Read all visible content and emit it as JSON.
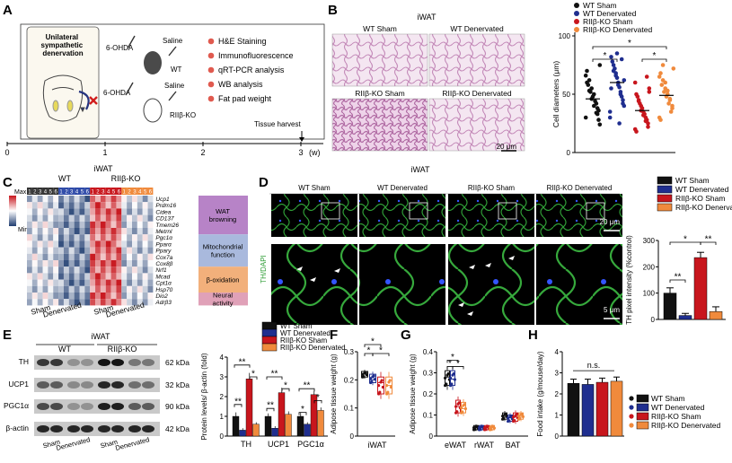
{
  "panels": {
    "A": {
      "label": "A",
      "box_title": "Unilateral sympathetic denervation",
      "drug": "6-OHDA",
      "control": "Saline",
      "groups": [
        "WT",
        "RIIβ-KO"
      ],
      "assays": [
        "H&E Staining",
        "Immunofluorescence",
        "qRT-PCR analysis",
        "WB analysis",
        "Fat pad weight"
      ],
      "harvest": "Tissue harvest",
      "timeline_ticks": [
        "0",
        "1",
        "2",
        "3"
      ],
      "timeline_unit": "(w)",
      "bullet_color": "#e05a4f"
    },
    "B": {
      "label": "B",
      "tissue": "iWAT",
      "images": [
        "WT Sham",
        "WT Denervated",
        "RIIβ-KO Sham",
        "RIIβ-KO Denervated"
      ],
      "scale": "20 μm"
    },
    "C": {
      "label": "C",
      "tissue": "iWAT",
      "groups": [
        "WT",
        "RIIβ-KO"
      ],
      "sample_numbers": [
        "1",
        "2",
        "3",
        "4",
        "5",
        "6",
        "1",
        "2",
        "3",
        "4",
        "5",
        "6",
        "1",
        "2",
        "3",
        "4",
        "5",
        "6",
        "1",
        "2",
        "3",
        "4",
        "5",
        "6"
      ],
      "legend_max": "Max",
      "legend_min": "Min",
      "genes": [
        "Ucp1",
        "Prdm16",
        "Cidea",
        "CD137",
        "Tmem26",
        "Metrnl",
        "Pgc1α",
        "Pparα",
        "Ppary",
        "Cox7a",
        "Cox8β",
        "Nrf1",
        "Mcad",
        "Cpt1α",
        "Hsp70",
        "Dio2",
        "Adrβ3"
      ],
      "categories": [
        {
          "name": "WAT browning",
          "color": "#b783c7"
        },
        {
          "name": "Mitochondrial function",
          "color": "#a9b9dd"
        },
        {
          "name": "β-oxidation",
          "color": "#f2b07b"
        },
        {
          "name": "Neural activity",
          "color": "#e0a1b8"
        }
      ],
      "xlabels": [
        "Sham",
        "Denervated",
        "Sham",
        "Denervated"
      ]
    },
    "D": {
      "label": "D",
      "tissue": "iWAT",
      "images": [
        "WT Sham",
        "WT Denervated",
        "RIIβ-KO Sham",
        "RIIβ-KO Denervated"
      ],
      "stain": "TH/DAPI",
      "scale_top": "20 μm",
      "scale_bottom": "5 μm"
    },
    "E": {
      "label": "E",
      "tissue": "iWAT",
      "groups": [
        "WT",
        "RIIβ-KO"
      ],
      "blots": [
        {
          "name": "TH",
          "size": "62 kDa"
        },
        {
          "name": "UCP1",
          "size": "32 kDa"
        },
        {
          "name": "PGC1α",
          "size": "90 kDa"
        },
        {
          "name": "β-actin",
          "size": "42 kDa"
        }
      ],
      "xlabels": [
        "Sham",
        "Denervated",
        "Sham",
        "Denervated"
      ]
    },
    "F": {
      "label": "F"
    },
    "G": {
      "label": "G"
    },
    "H": {
      "label": "H",
      "ns": "n.s."
    }
  },
  "significance": {
    "star1": "*",
    "star2": "**"
  },
  "legend": [
    {
      "name": "WT Sham",
      "color": "#111111"
    },
    {
      "name": "WT Denervated",
      "color": "#1f2e8f"
    },
    {
      "name": "RIIβ-KO Sham",
      "color": "#c8161d"
    },
    {
      "name": "RIIβ-KO Denervated",
      "color": "#f08a3c"
    }
  ],
  "chart_data": [
    {
      "id": "B",
      "type": "scatter",
      "ylabel": "Cell diameters (μm)",
      "ylim": [
        0,
        100
      ],
      "yticks": [
        0,
        50,
        100
      ],
      "categories": [
        "WT Sham",
        "WT Denervated",
        "RIIβ-KO Sham",
        "RIIβ-KO Denervated"
      ],
      "means": [
        46,
        60,
        36,
        49
      ],
      "points": [
        [
          30,
          36,
          42,
          50,
          55,
          62,
          70,
          75,
          38,
          44,
          48,
          52,
          58,
          66,
          28,
          34,
          40,
          46,
          53,
          60,
          24,
          33
        ],
        [
          35,
          45,
          52,
          60,
          68,
          75,
          82,
          40,
          48,
          56,
          64,
          72,
          78,
          30,
          42,
          50,
          58,
          66,
          70,
          55,
          62,
          80,
          25,
          85
        ],
        [
          20,
          25,
          30,
          35,
          40,
          45,
          50,
          55,
          28,
          33,
          38,
          42,
          48,
          60,
          22,
          27,
          32,
          36,
          44,
          18,
          52,
          65
        ],
        [
          30,
          38,
          45,
          50,
          55,
          62,
          68,
          72,
          35,
          42,
          48,
          52,
          58,
          65,
          40,
          46,
          53,
          60,
          75,
          28
        ]
      ]
    },
    {
      "id": "D",
      "type": "bar",
      "ylabel": "TH pixel intensity (%control)",
      "ylim": [
        0,
        300
      ],
      "yticks": [
        0,
        100,
        200,
        300
      ],
      "categories": [
        "WT Sham",
        "WT Denervated",
        "RIIβ-KO Sham",
        "RIIβ-KO Denervated"
      ],
      "values": [
        100,
        15,
        235,
        30
      ],
      "errors": [
        20,
        8,
        20,
        18
      ]
    },
    {
      "id": "E",
      "type": "bar",
      "ylabel": "Protein levels/ β-actin (fold)",
      "ylim": [
        0,
        4
      ],
      "yticks": [
        0,
        1,
        2,
        3,
        4
      ],
      "categories": [
        "TH",
        "UCP1",
        "PGC1α"
      ],
      "series": [
        {
          "name": "WT Sham",
          "values": [
            1.0,
            1.0,
            1.0
          ],
          "errors": [
            0.2,
            0.15,
            0.2
          ]
        },
        {
          "name": "WT Denervated",
          "values": [
            0.3,
            0.4,
            0.6
          ],
          "errors": [
            0.1,
            0.1,
            0.1
          ]
        },
        {
          "name": "RIIβ-KO Sham",
          "values": [
            2.9,
            2.2,
            2.1
          ],
          "errors": [
            0.3,
            0.25,
            0.2
          ]
        },
        {
          "name": "RIIβ-KO Denervated",
          "values": [
            0.6,
            1.1,
            1.3
          ],
          "errors": [
            0.1,
            0.15,
            0.15
          ]
        }
      ]
    },
    {
      "id": "F",
      "type": "box",
      "ylabel": "Adipose tissue weight (g)",
      "ylim": [
        0,
        0.3
      ],
      "yticks": [
        0,
        0.1,
        0.2,
        0.3
      ],
      "categories": [
        "iWAT"
      ],
      "boxes": [
        [
          0.21,
          0.23,
          0.22
        ],
        [
          0.19,
          0.22,
          0.2
        ],
        [
          0.15,
          0.21,
          0.19
        ],
        [
          0.15,
          0.21,
          0.18
        ]
      ]
    },
    {
      "id": "G",
      "type": "box",
      "ylabel": "Adipose tissue weight (g)",
      "ylim": [
        0,
        0.4
      ],
      "yticks": [
        0,
        0.1,
        0.2,
        0.3,
        0.4
      ],
      "categories": [
        "eWAT",
        "rWAT",
        "BAT"
      ],
      "boxes": [
        [
          [
            0.24,
            0.31,
            0.28
          ],
          [
            0.24,
            0.31,
            0.27
          ],
          [
            0.11,
            0.17,
            0.14
          ],
          [
            0.11,
            0.16,
            0.13
          ]
        ],
        [
          [
            0.03,
            0.05,
            0.04
          ],
          [
            0.03,
            0.05,
            0.04
          ],
          [
            0.03,
            0.05,
            0.04
          ],
          [
            0.03,
            0.05,
            0.04
          ]
        ],
        [
          [
            0.08,
            0.11,
            0.09
          ],
          [
            0.07,
            0.1,
            0.09
          ],
          [
            0.07,
            0.11,
            0.09
          ],
          [
            0.08,
            0.11,
            0.09
          ]
        ]
      ]
    },
    {
      "id": "H",
      "type": "bar",
      "ylabel": "Food intake (g/mouse/day)",
      "ylim": [
        0,
        4
      ],
      "yticks": [
        0,
        1,
        2,
        3,
        4
      ],
      "categories": [
        "WT Sham",
        "WT Denervated",
        "RIIβ-KO Sham",
        "RIIβ-KO Denervated"
      ],
      "values": [
        2.5,
        2.45,
        2.55,
        2.6
      ],
      "errors": [
        0.2,
        0.25,
        0.2,
        0.2
      ]
    }
  ]
}
